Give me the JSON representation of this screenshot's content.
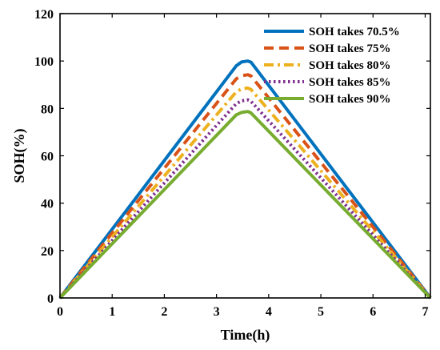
{
  "chart_data": {
    "type": "line",
    "xlabel": "Time(h)",
    "ylabel": "SOH(%)",
    "xlim": [
      0,
      7.1
    ],
    "ylim": [
      0,
      120
    ],
    "xticks": [
      0,
      1,
      2,
      3,
      4,
      5,
      6,
      7
    ],
    "yticks": [
      0,
      20,
      40,
      60,
      80,
      100,
      120
    ],
    "grid": false,
    "legend_position": "top-right",
    "series": [
      {
        "name": "SOH takes 70.5%",
        "color": "#0072BD",
        "style": "solid",
        "x": [
          0,
          3.38,
          3.48,
          3.6,
          3.66,
          7.1
        ],
        "y": [
          0,
          98,
          99.6,
          100,
          99.5,
          0
        ]
      },
      {
        "name": "SOH takes 75%",
        "color": "#D95319",
        "style": "dashed",
        "x": [
          0,
          3.38,
          3.48,
          3.6,
          3.66,
          7.1
        ],
        "y": [
          0,
          92.5,
          93.8,
          94.2,
          93.7,
          0
        ]
      },
      {
        "name": "SOH takes 80%",
        "color": "#EDB120",
        "style": "dashdot",
        "x": [
          0,
          3.38,
          3.48,
          3.6,
          3.66,
          7.1
        ],
        "y": [
          0,
          87,
          88.2,
          88.6,
          88,
          0
        ]
      },
      {
        "name": "SOH takes 85%",
        "color": "#7E2F8E",
        "style": "dotted",
        "x": [
          0,
          3.38,
          3.48,
          3.6,
          3.66,
          7.1
        ],
        "y": [
          0,
          82,
          83.2,
          83.6,
          83,
          0
        ]
      },
      {
        "name": "SOH takes 90%",
        "color": "#77AC30",
        "style": "solid",
        "x": [
          0,
          3.38,
          3.48,
          3.6,
          3.66,
          7.1
        ],
        "y": [
          0,
          77.3,
          78.3,
          78.7,
          78.1,
          0
        ]
      }
    ]
  }
}
